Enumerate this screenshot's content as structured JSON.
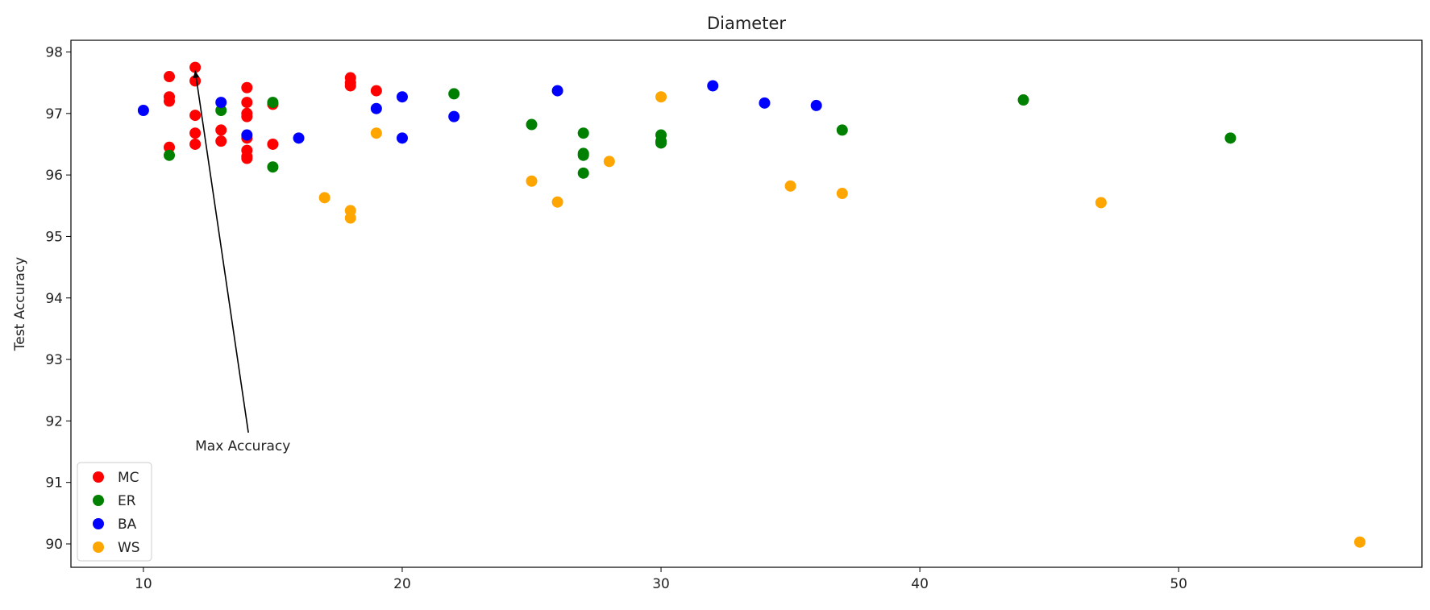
{
  "chart_data": {
    "type": "scatter",
    "title": "Diameter",
    "xlabel": "",
    "ylabel": "Test Accuracy",
    "xlim": [
      7.2,
      59.4
    ],
    "ylim": [
      89.62,
      98.19
    ],
    "xticks": [
      10,
      20,
      30,
      40,
      50
    ],
    "yticks": [
      90,
      91,
      92,
      93,
      94,
      95,
      96,
      97,
      98
    ],
    "grid": false,
    "legend": "bottom-left",
    "series": [
      {
        "name": "MC",
        "color": "#ff0000",
        "x": [
          11,
          11,
          11,
          11,
          12,
          12,
          12,
          12,
          12,
          13,
          13,
          14,
          14,
          14,
          14,
          14,
          14,
          14,
          14,
          15,
          15,
          18,
          18,
          18,
          19
        ],
        "y": [
          97.6,
          97.27,
          97.2,
          96.45,
          97.75,
          97.53,
          96.97,
          96.68,
          96.5,
          96.73,
          96.55,
          97.42,
          97.18,
          97.0,
          96.95,
          96.6,
          96.4,
          96.3,
          96.27,
          97.15,
          96.5,
          97.58,
          97.5,
          97.45,
          97.37
        ]
      },
      {
        "name": "ER",
        "color": "#008000",
        "x": [
          11,
          13,
          15,
          15,
          22,
          25,
          27,
          27,
          27,
          27,
          30,
          30,
          30,
          37,
          44,
          52
        ],
        "y": [
          96.32,
          97.05,
          97.18,
          96.13,
          97.32,
          96.82,
          96.68,
          96.35,
          96.32,
          96.03,
          96.65,
          96.55,
          96.52,
          96.73,
          97.22,
          96.6
        ]
      },
      {
        "name": "BA",
        "color": "#0000ff",
        "x": [
          10,
          13,
          14,
          16,
          19,
          20,
          20,
          22,
          26,
          32,
          34,
          36
        ],
        "y": [
          97.05,
          97.18,
          96.65,
          96.6,
          97.08,
          97.27,
          96.6,
          96.95,
          97.37,
          97.45,
          97.17,
          97.13
        ]
      },
      {
        "name": "WS",
        "color": "#ffa500",
        "x": [
          17,
          18,
          18,
          19,
          25,
          26,
          28,
          30,
          35,
          37,
          47,
          57
        ],
        "y": [
          95.63,
          95.42,
          95.3,
          96.68,
          95.9,
          95.56,
          96.22,
          97.27,
          95.82,
          95.7,
          95.55,
          90.03
        ]
      }
    ],
    "annotations": [
      {
        "text": "Max Accuracy",
        "point": [
          12,
          97.75
        ],
        "text_at": [
          12,
          91.6
        ]
      }
    ]
  }
}
